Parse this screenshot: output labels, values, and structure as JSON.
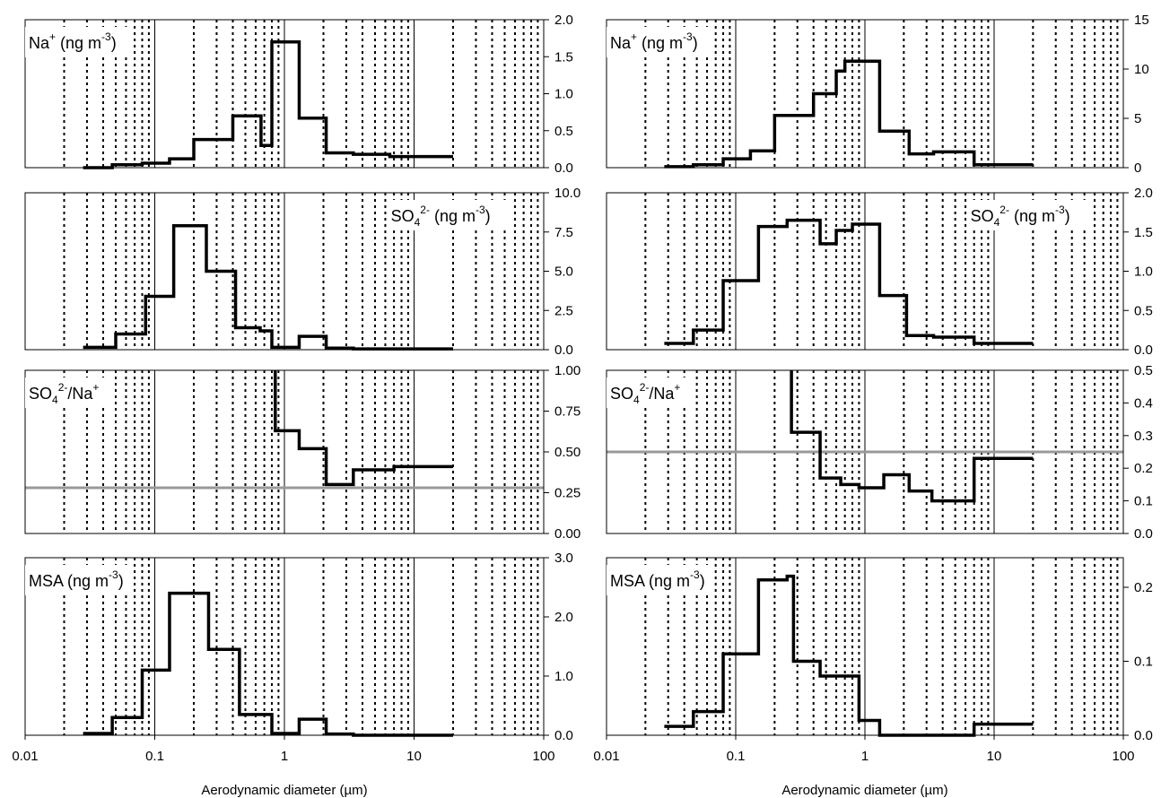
{
  "chart_data": [
    {
      "type": "line",
      "panel": "left-1",
      "label": {
        "main": "Na",
        "sup": "+",
        "rest": " (ng m",
        "sup2": "-3",
        "end": ")"
      },
      "label_position": "top-left",
      "x_scale": "log",
      "xlim": [
        0.01,
        100
      ],
      "ylim": [
        0,
        2.0
      ],
      "yticks": [
        "2.0",
        "1.5",
        "1.0",
        "0.5",
        "0.0"
      ],
      "yticks_values": [
        2.0,
        1.5,
        1.0,
        0.5,
        0.0
      ],
      "reference_line": null,
      "series": [
        {
          "edges": [
            0.028,
            0.047,
            0.08,
            0.13,
            0.2,
            0.4,
            0.66,
            0.8,
            1.3,
            2.1,
            3.4,
            6.5,
            20
          ],
          "values": [
            0.0,
            0.04,
            0.06,
            0.12,
            0.38,
            0.7,
            0.3,
            1.7,
            0.67,
            0.2,
            0.18,
            0.15
          ]
        }
      ]
    },
    {
      "type": "line",
      "panel": "right-1",
      "label": {
        "main": "Na",
        "sup": "+",
        "rest": " (ng m",
        "sup2": "-3",
        "end": ")"
      },
      "label_position": "top-left",
      "x_scale": "log",
      "xlim": [
        0.01,
        100
      ],
      "ylim": [
        0,
        15
      ],
      "yticks": [
        "15",
        "10",
        "5",
        "0"
      ],
      "yticks_values": [
        15,
        10,
        5,
        0
      ],
      "reference_line": null,
      "series": [
        {
          "edges": [
            0.028,
            0.047,
            0.08,
            0.13,
            0.2,
            0.4,
            0.6,
            0.7,
            1.3,
            2.2,
            3.4,
            7.0,
            20
          ],
          "values": [
            0.1,
            0.3,
            0.9,
            1.7,
            5.3,
            7.5,
            9.8,
            10.8,
            3.7,
            1.4,
            1.6,
            0.3
          ]
        }
      ]
    },
    {
      "type": "line",
      "panel": "left-2",
      "label": {
        "main": "SO",
        "sub": "4",
        "sup": "2-",
        "rest": " (ng m",
        "sup2": "-3",
        "end": ")"
      },
      "label_position": "top-right",
      "x_scale": "log",
      "xlim": [
        0.01,
        100
      ],
      "ylim": [
        0,
        10.0
      ],
      "yticks": [
        "10.0",
        "7.5",
        "5.0",
        "2.5",
        "0.0"
      ],
      "yticks_values": [
        10.0,
        7.5,
        5.0,
        2.5,
        0.0
      ],
      "reference_line": null,
      "series": [
        {
          "edges": [
            0.028,
            0.05,
            0.085,
            0.14,
            0.25,
            0.42,
            0.65,
            0.8,
            1.3,
            2.1,
            3.4,
            7.0,
            20
          ],
          "values": [
            0.15,
            1.0,
            3.4,
            7.9,
            5.0,
            1.4,
            1.2,
            0.15,
            0.85,
            0.1,
            0.05,
            0.05
          ]
        }
      ]
    },
    {
      "type": "line",
      "panel": "right-2",
      "label": {
        "main": "SO",
        "sub": "4",
        "sup": "2-",
        "rest": " (ng m",
        "sup2": "-3",
        "end": ")"
      },
      "label_position": "top-right",
      "x_scale": "log",
      "xlim": [
        0.01,
        100
      ],
      "ylim": [
        0,
        2.0
      ],
      "yticks": [
        "2.0",
        "1.5",
        "1.0",
        "0.5",
        "0.0"
      ],
      "yticks_values": [
        2.0,
        1.5,
        1.0,
        0.5,
        0.0
      ],
      "reference_line": null,
      "series": [
        {
          "edges": [
            0.028,
            0.047,
            0.08,
            0.15,
            0.25,
            0.45,
            0.6,
            0.8,
            1.3,
            2.1,
            3.4,
            7.0,
            20
          ],
          "values": [
            0.08,
            0.25,
            0.88,
            1.57,
            1.65,
            1.35,
            1.52,
            1.6,
            0.69,
            0.18,
            0.16,
            0.08
          ]
        }
      ]
    },
    {
      "type": "line",
      "panel": "left-3",
      "label": {
        "main": "SO",
        "sub": "4",
        "sup": "2-",
        "rest": "/Na",
        "sup2": "+",
        "end": ""
      },
      "label_position": "top-left",
      "x_scale": "log",
      "xlim": [
        0.01,
        100
      ],
      "ylim": [
        0,
        1.0
      ],
      "yticks": [
        "1.00",
        "0.75",
        "0.50",
        "0.25",
        "0.00"
      ],
      "yticks_values": [
        1.0,
        0.75,
        0.5,
        0.25,
        0.0
      ],
      "reference_line": {
        "y": 0.28,
        "color": "#999999"
      },
      "series": [
        {
          "edges": [
            0.85,
            1.3,
            2.1,
            3.4,
            7.0,
            20
          ],
          "values": [
            0.63,
            0.52,
            0.3,
            0.39,
            0.41
          ],
          "lead_in": {
            "x": 0.85,
            "y_from": 1.0
          }
        }
      ]
    },
    {
      "type": "line",
      "panel": "right-3",
      "label": {
        "main": "SO",
        "sub": "4",
        "sup": "2-",
        "rest": "/Na",
        "sup2": "+",
        "end": ""
      },
      "label_position": "top-left",
      "x_scale": "log",
      "xlim": [
        0.01,
        100
      ],
      "ylim": [
        0,
        0.5
      ],
      "yticks": [
        "0.5",
        "0.4",
        "0.3",
        "0.2",
        "0.1",
        "0.0"
      ],
      "yticks_values": [
        0.5,
        0.4,
        0.3,
        0.2,
        0.1,
        0.0
      ],
      "reference_line": {
        "y": 0.25,
        "color": "#999999"
      },
      "series": [
        {
          "edges": [
            0.27,
            0.45,
            0.65,
            0.9,
            1.4,
            2.2,
            3.3,
            7.0,
            20
          ],
          "values": [
            0.31,
            0.17,
            0.15,
            0.14,
            0.18,
            0.13,
            0.1,
            0.23
          ],
          "lead_in": {
            "x": 0.27,
            "y_from": 0.5
          }
        }
      ]
    },
    {
      "type": "line",
      "panel": "left-4",
      "label": {
        "main": "MSA",
        "rest": " (ng m",
        "sup2": "-3",
        "end": ")"
      },
      "label_position": "top-left",
      "x_scale": "log",
      "xlim": [
        0.01,
        100
      ],
      "ylim": [
        0,
        3.0
      ],
      "yticks": [
        "3.0",
        "2.0",
        "1.0",
        "0.0"
      ],
      "yticks_values": [
        3.0,
        2.0,
        1.0,
        0.0
      ],
      "reference_line": null,
      "series": [
        {
          "edges": [
            0.028,
            0.047,
            0.08,
            0.13,
            0.2,
            0.26,
            0.45,
            0.8,
            1.3,
            2.1,
            3.4,
            7.0,
            20
          ],
          "values": [
            0.03,
            0.3,
            1.1,
            2.4,
            2.4,
            1.45,
            0.35,
            0.03,
            0.27,
            0.02,
            0.0,
            0.0
          ]
        }
      ]
    },
    {
      "type": "line",
      "panel": "right-4",
      "label": {
        "main": "MSA",
        "rest": " (ng m",
        "sup2": "-3",
        "end": ")"
      },
      "label_position": "top-left",
      "x_scale": "log",
      "xlim": [
        0.01,
        100
      ],
      "ylim": [
        0,
        0.24
      ],
      "yticks": [
        "0.2",
        "0.1",
        "0.0"
      ],
      "yticks_values": [
        0.2,
        0.1,
        0.0
      ],
      "reference_line": null,
      "series": [
        {
          "edges": [
            0.028,
            0.047,
            0.08,
            0.15,
            0.25,
            0.28,
            0.45,
            0.9,
            1.3,
            2.2,
            3.3,
            7.0,
            20
          ],
          "values": [
            0.012,
            0.032,
            0.11,
            0.21,
            0.215,
            0.1,
            0.08,
            0.02,
            0.0,
            0.0,
            0.0,
            0.015
          ]
        }
      ]
    }
  ],
  "x_axis": {
    "ticks": [
      "0.01",
      "0.1",
      "1",
      "10",
      "100"
    ],
    "tick_values": [
      0.01,
      0.1,
      1,
      10,
      100
    ],
    "label": "Aerodynamic diameter (µm)"
  },
  "colors": {
    "series": "#000000",
    "reference": "#999999",
    "grid_major": "#000000",
    "grid_minor": "#000000"
  }
}
